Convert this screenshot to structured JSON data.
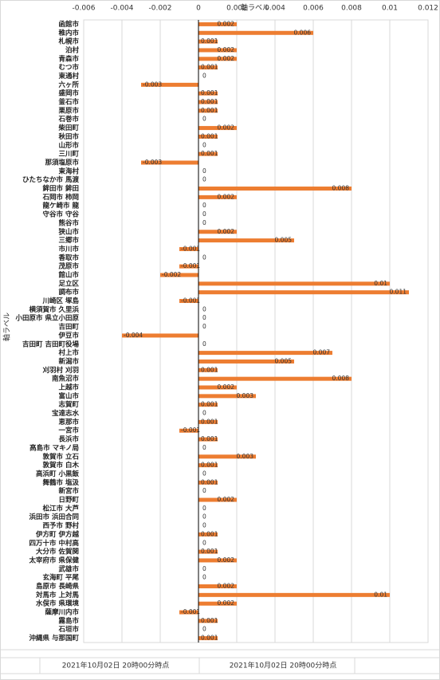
{
  "chart_data": {
    "type": "hbar",
    "x_label": "軸ラベル",
    "y_label": "軸ラベル",
    "categories": [
      "函館市",
      "稚内市",
      "札幌市",
      "泊村",
      "青森市",
      "むつ市",
      "東通村",
      "六ヶ所",
      "盛岡市",
      "釜石市",
      "栗原市",
      "石巻市",
      "柴田町",
      "秋田市",
      "山形市",
      "三川町",
      "那須塩原市",
      "東海村",
      "ひたちなか市 馬渡",
      "鉾田市 鉾田",
      "石岡市 柿岡",
      "龍ケ崎市 龍",
      "守谷市 守谷",
      "熊谷市",
      "狭山市",
      "三郷市",
      "市川市",
      "香取市",
      "茂原市",
      "館山市",
      "足立区",
      "調布市",
      "川崎区 塚島",
      "横須賀市 久里浜",
      "小田原市 県立小田原",
      "吉田町",
      "伊豆市",
      "吉田町 吉田町役場",
      "村上市",
      "新潟市",
      "刈羽村 刈羽",
      "南魚沼市",
      "上越市",
      "富山市",
      "志賀町",
      "宝達志水",
      "恵那市",
      "一宮市",
      "長浜市",
      "高島市 マキノ局",
      "敦賀市 立石",
      "敦賀市 白木",
      "高浜町 小黒飯",
      "舞鶴市 塩汲",
      "新宮市",
      "日野町",
      "松江市 大芦",
      "浜田市 浜田合同",
      "西予市 野村",
      "伊方町 伊方越",
      "四万十市 中村高",
      "大分市 佐賀関",
      "太宰府市 県保健",
      "武雄市",
      "玄海町 平尾",
      "島原市 長崎県",
      "対馬市 上対馬",
      "水俣市 県環境",
      "薩摩川内市",
      "霧島市",
      "石垣市",
      "沖縄県 与那国町"
    ],
    "values": [
      0.002,
      0.006,
      0.001,
      0.002,
      0.002,
      0.001,
      0,
      -0.003,
      0.001,
      0.001,
      0.001,
      0,
      0.002,
      0.001,
      0,
      0.001,
      -0.003,
      0,
      0,
      0.008,
      0.002,
      0,
      0,
      0,
      0.002,
      0.005,
      -0.001,
      0,
      -0.001,
      -0.002,
      0.01,
      0.011,
      -0.001,
      0,
      0,
      0,
      -0.004,
      0,
      0.007,
      0.005,
      0.001,
      0.008,
      0.002,
      0.003,
      0.001,
      0,
      0.001,
      -0.001,
      0.001,
      0,
      0.003,
      0.001,
      0,
      0.001,
      0,
      0.002,
      0,
      0,
      0,
      0.001,
      0,
      0.001,
      0.002,
      0,
      0,
      0.002,
      0.01,
      0.002,
      -0.001,
      0.001,
      0,
      0.001
    ],
    "color": "#ed7d31",
    "xlim": [
      -0.006,
      0.012
    ],
    "xticks": [
      -0.006,
      -0.004,
      -0.002,
      0,
      0.002,
      0.004,
      0.006,
      0.008,
      0.01,
      0.012
    ],
    "grid": true,
    "footer_labels": [
      "2021年10月02日 20時00分時点",
      "2021年10月02日 20時00分時点"
    ]
  }
}
